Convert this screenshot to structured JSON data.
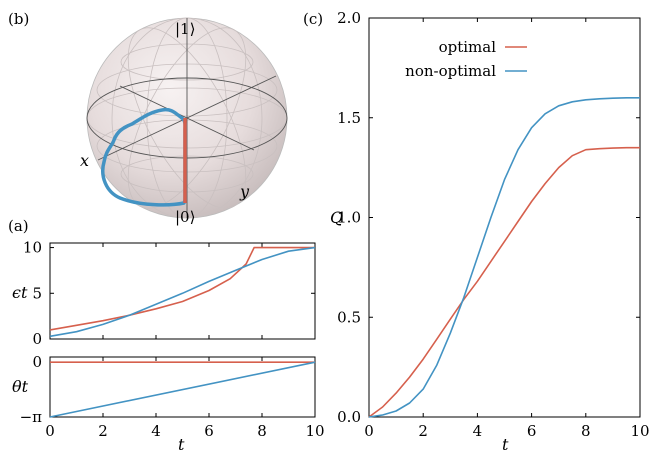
{
  "panels": {
    "a": "(a)",
    "b": "(b)",
    "c": "(c)"
  },
  "colors": {
    "optimal": "#d6604d",
    "nonoptimal": "#4393c3"
  },
  "bloch": {
    "top_label": "|1⟩",
    "bottom_label": "|0⟩",
    "x_label": "x",
    "y_label": "y"
  },
  "chart_data": [
    {
      "type": "line",
      "panel": "a-top",
      "xlabel": "",
      "ylabel": "ϵt",
      "xlim": [
        0,
        10
      ],
      "ylim": [
        0,
        10.5
      ],
      "yticks": [
        "0",
        "5",
        "10"
      ],
      "series": [
        {
          "color": "#d6604d",
          "x": [
            0,
            1,
            2,
            3,
            4,
            5,
            6,
            6.8,
            7.4,
            7.7,
            8,
            9,
            10
          ],
          "y": [
            1.0,
            1.5,
            2.0,
            2.6,
            3.3,
            4.1,
            5.3,
            6.6,
            8.2,
            10.0,
            10.0,
            10.0,
            10.0
          ]
        },
        {
          "color": "#4393c3",
          "x": [
            0,
            1,
            2,
            3,
            4,
            5,
            6,
            7,
            8,
            9,
            10
          ],
          "y": [
            0.3,
            0.8,
            1.6,
            2.6,
            3.8,
            5.0,
            6.3,
            7.5,
            8.7,
            9.6,
            10.0
          ]
        }
      ]
    },
    {
      "type": "line",
      "panel": "a-bottom",
      "xlabel": "t",
      "ylabel": "θt",
      "xlim": [
        0,
        10
      ],
      "ylim": [
        -3.1416,
        0.3
      ],
      "xticks": [
        "0",
        "2",
        "4",
        "6",
        "8",
        "10"
      ],
      "yticks": [
        "0",
        "−π"
      ],
      "series": [
        {
          "color": "#d6604d",
          "x": [
            0,
            10
          ],
          "y": [
            0,
            0
          ]
        },
        {
          "color": "#4393c3",
          "x": [
            0,
            10
          ],
          "y": [
            -3.1416,
            0
          ]
        }
      ]
    },
    {
      "type": "line",
      "panel": "c",
      "xlabel": "t",
      "ylabel": "Q",
      "xlim": [
        0,
        10
      ],
      "ylim": [
        0,
        2.0
      ],
      "xticks": [
        "0",
        "2",
        "4",
        "6",
        "8",
        "10"
      ],
      "yticks": [
        "0.0",
        "0.5",
        "1.0",
        "1.5",
        "2.0"
      ],
      "legend": "top-left",
      "series": [
        {
          "name": "optimal",
          "color": "#d6604d",
          "x": [
            0,
            0.5,
            1,
            1.5,
            2,
            2.5,
            3,
            3.5,
            4,
            4.5,
            5,
            5.5,
            6,
            6.5,
            7,
            7.5,
            8,
            8.5,
            9,
            9.5,
            10
          ],
          "y": [
            0,
            0.05,
            0.12,
            0.2,
            0.29,
            0.39,
            0.49,
            0.59,
            0.68,
            0.78,
            0.88,
            0.98,
            1.08,
            1.17,
            1.25,
            1.31,
            1.34,
            1.345,
            1.348,
            1.35,
            1.35
          ]
        },
        {
          "name": "non-optimal",
          "color": "#4393c3",
          "x": [
            0,
            0.5,
            1,
            1.5,
            2,
            2.5,
            3,
            3.5,
            4,
            4.5,
            5,
            5.5,
            6,
            6.5,
            7,
            7.5,
            8,
            8.5,
            9,
            9.5,
            10
          ],
          "y": [
            0,
            0.01,
            0.03,
            0.07,
            0.14,
            0.26,
            0.42,
            0.6,
            0.8,
            1.0,
            1.19,
            1.34,
            1.45,
            1.52,
            1.56,
            1.58,
            1.59,
            1.595,
            1.598,
            1.6,
            1.6
          ]
        }
      ]
    }
  ]
}
